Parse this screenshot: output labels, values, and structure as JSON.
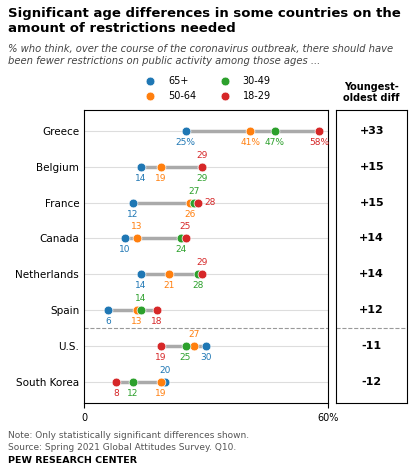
{
  "chart_data": {
    "type": "dot",
    "title": "Significant age differences in some countries on the amount of restrictions needed",
    "subtitle": "% who think, over the course of the coronavirus outbreak, there should have been fewer restrictions on public activity among those ages ...",
    "categories": [
      "Greece",
      "Belgium",
      "France",
      "Canada",
      "Netherlands",
      "Spain",
      "U.S.",
      "South Korea"
    ],
    "series": [
      {
        "name": "65+",
        "values": [
          25,
          14,
          12,
          10,
          14,
          6,
          30,
          20
        ],
        "value_labels": [
          "25%",
          "14",
          "12",
          "10",
          "14",
          "6",
          "30",
          "20"
        ]
      },
      {
        "name": "50-64",
        "values": [
          41,
          19,
          26,
          13,
          21,
          13,
          27,
          19
        ],
        "value_labels": [
          "41%",
          "19",
          "26",
          "13",
          "21",
          "13",
          "27",
          "19"
        ]
      },
      {
        "name": "30-49",
        "values": [
          47,
          29,
          27,
          24,
          28,
          14,
          25,
          12
        ],
        "value_labels": [
          "47%",
          "29",
          "27",
          "24",
          "28",
          "14",
          "25",
          "12"
        ]
      },
      {
        "name": "18-29",
        "values": [
          58,
          29,
          28,
          25,
          29,
          18,
          19,
          8
        ],
        "value_labels": [
          "58%",
          "29",
          "28",
          "25",
          "29",
          "18",
          "19",
          "8"
        ]
      }
    ],
    "xlim": [
      0,
      60
    ],
    "xticks": [
      0,
      {
        "value": 60,
        "label": "60%"
      }
    ],
    "data_labels": true,
    "grid": false,
    "legend": "lower center",
    "diff_title": "Youngest-\noldest diff",
    "diff_values": [
      33,
      15,
      15,
      14,
      14,
      12,
      -11,
      -12
    ],
    "diff_labels": [
      "+33",
      "+15",
      "+15",
      "+14",
      "+14",
      "+12",
      "-11",
      "-12"
    ],
    "notes": [
      "Note: Only statistically significant differences shown.",
      "Source: Spring 2021 Global Attitudes Survey. Q10.",
      "PEW RESEARCH CENTER"
    ]
  }
}
